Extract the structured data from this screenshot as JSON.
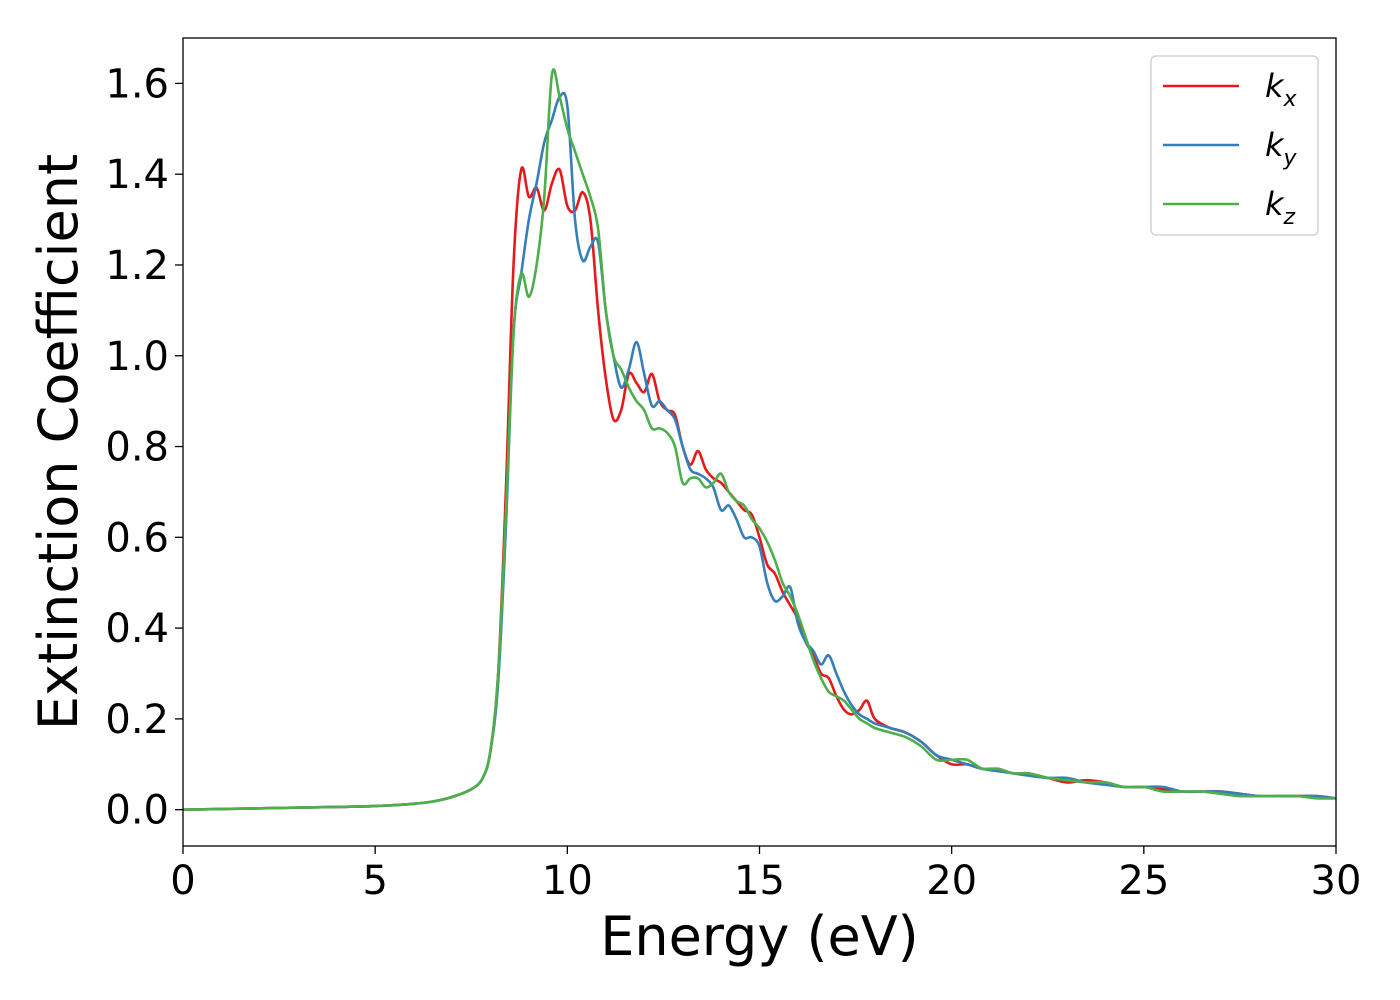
{
  "chart_data": {
    "type": "line",
    "xlabel": "Energy (eV)",
    "ylabel": "Extinction Coefficient",
    "xlim": [
      0,
      30
    ],
    "ylim": [
      -0.08,
      1.7
    ],
    "xticks": [
      0,
      5,
      10,
      15,
      20,
      25,
      30
    ],
    "xtick_labels": [
      "0",
      "5",
      "10",
      "15",
      "20",
      "25",
      "30"
    ],
    "yticks": [
      0.0,
      0.2,
      0.4,
      0.6,
      0.8,
      1.0,
      1.2,
      1.4,
      1.6
    ],
    "ytick_labels": [
      "0.0",
      "0.2",
      "0.4",
      "0.6",
      "0.8",
      "1.0",
      "1.2",
      "1.4",
      "1.6"
    ],
    "grid": false,
    "legend": "top-right",
    "series": [
      {
        "name": "kx",
        "label_main": "k",
        "label_sub": "x",
        "color": "#e41a1c",
        "x": [
          0,
          2,
          4,
          5,
          6,
          6.5,
          7,
          7.5,
          7.8,
          8.0,
          8.2,
          8.4,
          8.6,
          8.8,
          9.0,
          9.2,
          9.4,
          9.6,
          9.8,
          10.0,
          10.2,
          10.4,
          10.6,
          10.8,
          11.0,
          11.2,
          11.4,
          11.6,
          11.8,
          12.0,
          12.2,
          12.4,
          12.6,
          12.8,
          13.0,
          13.2,
          13.4,
          13.6,
          13.8,
          14.0,
          14.2,
          14.4,
          14.6,
          14.8,
          15.0,
          15.2,
          15.4,
          15.6,
          15.8,
          16.0,
          16.2,
          16.4,
          16.6,
          16.8,
          17.0,
          17.2,
          17.4,
          17.6,
          17.8,
          18.0,
          18.4,
          18.8,
          19.2,
          19.6,
          20.0,
          20.4,
          20.8,
          21.2,
          21.6,
          22.0,
          22.5,
          23.0,
          23.5,
          24.0,
          24.5,
          25.0,
          25.5,
          26.0,
          26.5,
          27.0,
          27.5,
          28.0,
          28.5,
          29.0,
          29.5,
          30.0
        ],
        "y": [
          0.0,
          0.003,
          0.006,
          0.008,
          0.013,
          0.018,
          0.028,
          0.045,
          0.07,
          0.13,
          0.3,
          0.7,
          1.2,
          1.41,
          1.35,
          1.37,
          1.32,
          1.38,
          1.41,
          1.33,
          1.32,
          1.36,
          1.3,
          1.1,
          0.95,
          0.86,
          0.88,
          0.96,
          0.94,
          0.92,
          0.96,
          0.9,
          0.88,
          0.87,
          0.8,
          0.76,
          0.79,
          0.75,
          0.73,
          0.72,
          0.7,
          0.68,
          0.66,
          0.65,
          0.6,
          0.54,
          0.52,
          0.48,
          0.45,
          0.42,
          0.37,
          0.34,
          0.3,
          0.29,
          0.25,
          0.22,
          0.21,
          0.22,
          0.24,
          0.2,
          0.18,
          0.17,
          0.15,
          0.12,
          0.1,
          0.1,
          0.09,
          0.09,
          0.08,
          0.08,
          0.07,
          0.06,
          0.065,
          0.06,
          0.05,
          0.05,
          0.045,
          0.04,
          0.04,
          0.04,
          0.035,
          0.03,
          0.03,
          0.03,
          0.03,
          0.025
        ]
      },
      {
        "name": "ky",
        "label_main": "k",
        "label_sub": "y",
        "color": "#377eb8",
        "x": [
          0,
          2,
          4,
          5,
          6,
          6.5,
          7,
          7.5,
          7.8,
          8.0,
          8.2,
          8.4,
          8.6,
          8.8,
          9.0,
          9.2,
          9.4,
          9.6,
          9.8,
          10.0,
          10.2,
          10.4,
          10.6,
          10.8,
          11.0,
          11.2,
          11.4,
          11.6,
          11.8,
          12.0,
          12.2,
          12.4,
          12.6,
          12.8,
          13.0,
          13.2,
          13.4,
          13.6,
          13.8,
          14.0,
          14.2,
          14.4,
          14.6,
          14.8,
          15.0,
          15.2,
          15.4,
          15.6,
          15.8,
          16.0,
          16.2,
          16.4,
          16.6,
          16.8,
          17.0,
          17.2,
          17.4,
          17.6,
          17.8,
          18.0,
          18.4,
          18.8,
          19.2,
          19.6,
          20.0,
          20.4,
          20.8,
          21.2,
          21.6,
          22.0,
          22.5,
          23.0,
          23.5,
          24.0,
          24.5,
          25.0,
          25.5,
          26.0,
          26.5,
          27.0,
          27.5,
          28.0,
          28.5,
          29.0,
          29.5,
          30.0
        ],
        "y": [
          0.0,
          0.003,
          0.006,
          0.008,
          0.013,
          0.018,
          0.028,
          0.045,
          0.07,
          0.13,
          0.28,
          0.62,
          1.05,
          1.18,
          1.3,
          1.38,
          1.47,
          1.52,
          1.57,
          1.55,
          1.3,
          1.21,
          1.24,
          1.25,
          1.1,
          1.0,
          0.93,
          0.97,
          1.03,
          0.96,
          0.89,
          0.9,
          0.88,
          0.86,
          0.8,
          0.75,
          0.74,
          0.73,
          0.71,
          0.66,
          0.67,
          0.64,
          0.6,
          0.6,
          0.58,
          0.5,
          0.46,
          0.47,
          0.49,
          0.41,
          0.37,
          0.35,
          0.32,
          0.34,
          0.3,
          0.26,
          0.23,
          0.21,
          0.2,
          0.19,
          0.18,
          0.17,
          0.15,
          0.12,
          0.11,
          0.1,
          0.09,
          0.085,
          0.08,
          0.075,
          0.07,
          0.07,
          0.06,
          0.055,
          0.05,
          0.05,
          0.05,
          0.04,
          0.04,
          0.04,
          0.035,
          0.03,
          0.03,
          0.03,
          0.03,
          0.025
        ]
      },
      {
        "name": "kz",
        "label_main": "k",
        "label_sub": "z",
        "color": "#4daf4a",
        "x": [
          0,
          2,
          4,
          5,
          6,
          6.5,
          7,
          7.5,
          7.8,
          8.0,
          8.2,
          8.4,
          8.6,
          8.8,
          9.0,
          9.2,
          9.4,
          9.6,
          9.8,
          10.0,
          10.2,
          10.4,
          10.6,
          10.8,
          11.0,
          11.2,
          11.4,
          11.6,
          11.8,
          12.0,
          12.2,
          12.4,
          12.6,
          12.8,
          13.0,
          13.2,
          13.4,
          13.6,
          13.8,
          14.0,
          14.2,
          14.4,
          14.6,
          14.8,
          15.0,
          15.2,
          15.4,
          15.6,
          15.8,
          16.0,
          16.2,
          16.4,
          16.6,
          16.8,
          17.0,
          17.2,
          17.4,
          17.6,
          17.8,
          18.0,
          18.4,
          18.8,
          19.2,
          19.6,
          20.0,
          20.4,
          20.8,
          21.2,
          21.6,
          22.0,
          22.5,
          23.0,
          23.5,
          24.0,
          24.5,
          25.0,
          25.5,
          26.0,
          26.5,
          27.0,
          27.5,
          28.0,
          28.5,
          29.0,
          29.5,
          30.0
        ],
        "y": [
          0.0,
          0.003,
          0.006,
          0.008,
          0.013,
          0.018,
          0.028,
          0.045,
          0.07,
          0.13,
          0.3,
          0.65,
          1.05,
          1.18,
          1.13,
          1.2,
          1.35,
          1.62,
          1.57,
          1.5,
          1.45,
          1.4,
          1.35,
          1.28,
          1.1,
          1.0,
          0.97,
          0.93,
          0.9,
          0.88,
          0.84,
          0.84,
          0.83,
          0.8,
          0.72,
          0.73,
          0.73,
          0.71,
          0.72,
          0.74,
          0.7,
          0.68,
          0.67,
          0.64,
          0.62,
          0.59,
          0.55,
          0.5,
          0.47,
          0.43,
          0.38,
          0.33,
          0.29,
          0.26,
          0.25,
          0.24,
          0.22,
          0.2,
          0.19,
          0.18,
          0.17,
          0.16,
          0.14,
          0.11,
          0.11,
          0.11,
          0.09,
          0.09,
          0.08,
          0.08,
          0.07,
          0.065,
          0.06,
          0.06,
          0.05,
          0.05,
          0.04,
          0.04,
          0.04,
          0.035,
          0.03,
          0.03,
          0.03,
          0.03,
          0.025,
          0.025
        ]
      }
    ]
  }
}
